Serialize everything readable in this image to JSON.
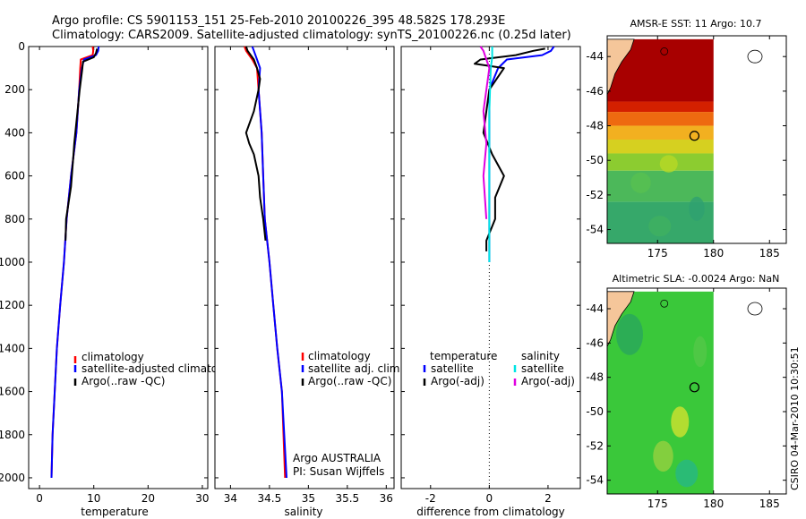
{
  "header": {
    "title_line1": "Argo profile: CS 5901153_151 25-Feb-2010 20100226_395 48.582S 178.293E",
    "title_line2": "Climatology: CARS2009. Satellite-adjusted climatology: synTS_20100226.nc (0.25d later)"
  },
  "colors": {
    "climatology": "#ff0000",
    "satellite": "#0000ff",
    "argo": "#000000",
    "salinity_satellite": "#00e5e5",
    "salinity_argo": "#e000e0",
    "land": "#f5c69a"
  },
  "chart_data": [
    {
      "type": "line",
      "name": "temperature-profile",
      "xlabel": "temperature",
      "xlim": [
        -2,
        31
      ],
      "ylim": [
        0,
        2050
      ],
      "y_reversed": true,
      "xticks": [
        0,
        10,
        20,
        30
      ],
      "yticks": [
        0,
        200,
        400,
        600,
        800,
        1000,
        1200,
        1400,
        1600,
        1800,
        2000
      ],
      "series": [
        {
          "name": "climatology",
          "color": "#ff0000",
          "x": [
            9.8,
            9.9,
            9.8,
            7.6,
            7.5,
            7.3,
            6.8,
            5.8,
            5.0,
            4.5,
            3.8,
            3.2,
            2.8,
            2.4,
            2.2
          ],
          "y": [
            0,
            20,
            40,
            60,
            100,
            200,
            400,
            600,
            800,
            1000,
            1200,
            1400,
            1600,
            1800,
            2000
          ]
        },
        {
          "name": "satellite-adjusted climatology",
          "color": "#0000ff",
          "x": [
            10.9,
            10.8,
            10.4,
            8.2,
            7.8,
            7.3,
            6.8,
            5.8,
            5.0,
            4.5,
            3.8,
            3.2,
            2.8,
            2.4,
            2.2
          ],
          "y": [
            0,
            20,
            40,
            60,
            100,
            200,
            400,
            600,
            800,
            1000,
            1200,
            1400,
            1600,
            1800,
            2000
          ]
        },
        {
          "name": "Argo(..raw -QC)",
          "color": "#000000",
          "x": [
            10.6,
            10.4,
            10.0,
            8.0,
            7.9,
            7.4,
            6.4,
            6.2,
            5.8,
            4.9,
            4.8
          ],
          "y": [
            10,
            30,
            50,
            70,
            100,
            200,
            450,
            520,
            650,
            800,
            900
          ]
        }
      ],
      "legend": {
        "placement": "lower-center",
        "entries": [
          "climatology",
          "satellite-adjusted climatology",
          "Argo(..raw -QC)"
        ]
      }
    },
    {
      "type": "line",
      "name": "salinity-profile",
      "xlabel": "salinity",
      "xlim": [
        33.8,
        36.1
      ],
      "ylim": [
        0,
        2050
      ],
      "y_reversed": true,
      "xticks": [
        34,
        34.5,
        35,
        35.5,
        36
      ],
      "series": [
        {
          "name": "climatology",
          "color": "#ff0000",
          "x": [
            34.18,
            34.2,
            34.28,
            34.34,
            34.36,
            34.4,
            34.42,
            34.44,
            34.5,
            34.55,
            34.6,
            34.66,
            34.7
          ],
          "y": [
            0,
            20,
            60,
            100,
            200,
            400,
            600,
            800,
            1000,
            1200,
            1400,
            1600,
            2000
          ]
        },
        {
          "name": "satellite adj. clim.",
          "color": "#0000ff",
          "x": [
            34.28,
            34.3,
            34.34,
            34.38,
            34.36,
            34.4,
            34.42,
            34.44,
            34.5,
            34.55,
            34.6,
            34.66,
            34.72
          ],
          "y": [
            0,
            20,
            60,
            100,
            200,
            400,
            600,
            800,
            1000,
            1200,
            1400,
            1600,
            2000
          ]
        },
        {
          "name": "Argo(..raw -QC)",
          "color": "#000000",
          "x": [
            34.2,
            34.22,
            34.3,
            34.34,
            34.38,
            34.36,
            34.3,
            34.2,
            34.24,
            34.3,
            34.36,
            34.38,
            34.42,
            34.45
          ],
          "y": [
            0,
            20,
            60,
            100,
            150,
            200,
            300,
            400,
            450,
            500,
            600,
            700,
            800,
            900
          ]
        }
      ],
      "legend": {
        "placement": "lower-center",
        "entries": [
          "climatology",
          "satellite adj. clim.",
          "Argo(..raw -QC)"
        ]
      },
      "annotations": [
        "Argo AUSTRALIA",
        "PI: Susan Wijffels"
      ]
    },
    {
      "type": "line",
      "name": "difference-profile",
      "xlabel": "difference from climatology",
      "xlim": [
        -3,
        3.1
      ],
      "ylim": [
        0,
        2050
      ],
      "y_reversed": true,
      "xticks": [
        -2,
        0,
        2
      ],
      "zero_line": "dotted",
      "series": [
        {
          "name": "temperature satellite",
          "color": "#0000ff",
          "x": [
            2.2,
            2.1,
            1.8,
            0.6,
            0.3,
            0.0,
            0.0,
            0.0,
            0.0,
            0.0,
            0.0
          ],
          "y": [
            0,
            20,
            40,
            60,
            100,
            200,
            400,
            600,
            800,
            900,
            1000
          ]
        },
        {
          "name": "temperature Argo(-adj)",
          "color": "#000000",
          "x": [
            1.9,
            1.5,
            0.9,
            -0.3,
            -0.5,
            0.5,
            0.0,
            -0.2,
            0.1,
            0.5,
            0.2,
            0.2,
            -0.1,
            -0.1
          ],
          "y": [
            10,
            20,
            40,
            60,
            80,
            100,
            200,
            400,
            500,
            600,
            700,
            800,
            900,
            950
          ]
        },
        {
          "name": "salinity satellite",
          "color": "#00e5e5",
          "x": [
            0.1,
            0.1,
            0.05,
            0.0,
            0.0,
            0.0,
            0.0
          ],
          "y": [
            0,
            50,
            100,
            300,
            500,
            800,
            1000
          ]
        },
        {
          "name": "salinity Argo(-adj)",
          "color": "#e000e0",
          "x": [
            -0.3,
            -0.2,
            -0.1,
            0.0,
            -0.1,
            -0.2,
            -0.1,
            -0.2,
            -0.1
          ],
          "y": [
            0,
            20,
            60,
            100,
            200,
            300,
            450,
            600,
            800
          ]
        }
      ],
      "legend": {
        "placement": "lower-center",
        "headers": [
          "temperature",
          "salinity"
        ],
        "entries": [
          "satellite",
          "Argo(-adj)",
          "satellite",
          "Argo(-adj)"
        ]
      }
    },
    {
      "type": "heatmap",
      "name": "sst-map",
      "title": "AMSR-E SST: 11  Argo: 10.7",
      "xlim": [
        170.5,
        186.5
      ],
      "ylim": [
        -54.8,
        -42.8
      ],
      "xticks": [
        175,
        180,
        185
      ],
      "yticks": [
        -44,
        -46,
        -48,
        -50,
        -52,
        -54
      ],
      "data_extent": {
        "lon": [
          170.5,
          180
        ],
        "lat": [
          -54.8,
          -43
        ]
      },
      "bands": [
        {
          "lat": [
            -43.0,
            -46.6
          ],
          "color": "#a80000"
        },
        {
          "lat": [
            -46.6,
            -47.2
          ],
          "color": "#d42000"
        },
        {
          "lat": [
            -47.2,
            -48.0
          ],
          "color": "#ee6a10"
        },
        {
          "lat": [
            -48.0,
            -48.8
          ],
          "color": "#f2b020"
        },
        {
          "lat": [
            -48.8,
            -49.6
          ],
          "color": "#d6d020"
        },
        {
          "lat": [
            -49.6,
            -50.6
          ],
          "color": "#8ccc30"
        },
        {
          "lat": [
            -50.6,
            -52.4
          ],
          "color": "#4cb85a"
        },
        {
          "lat": [
            -52.4,
            -54.8
          ],
          "color": "#36a86a"
        }
      ],
      "argo_position": {
        "lon": 178.293,
        "lat": -48.582
      }
    },
    {
      "type": "heatmap",
      "name": "sla-map",
      "title": "Altimetric SLA: -0.0024  Argo: NaN",
      "xlim": [
        170.5,
        186.5
      ],
      "ylim": [
        -54.8,
        -42.8
      ],
      "xticks": [
        175,
        180,
        185
      ],
      "yticks": [
        -44,
        -46,
        -48,
        -50,
        -52,
        -54
      ],
      "data_extent": {
        "lon": [
          170.5,
          180
        ],
        "lat": [
          -54.8,
          -43
        ]
      },
      "base_color": "#3ac83a",
      "argo_position": {
        "lon": 178.293,
        "lat": -48.582
      }
    }
  ],
  "credit": "CSIRO 04-Mar-2010 10:30:51"
}
